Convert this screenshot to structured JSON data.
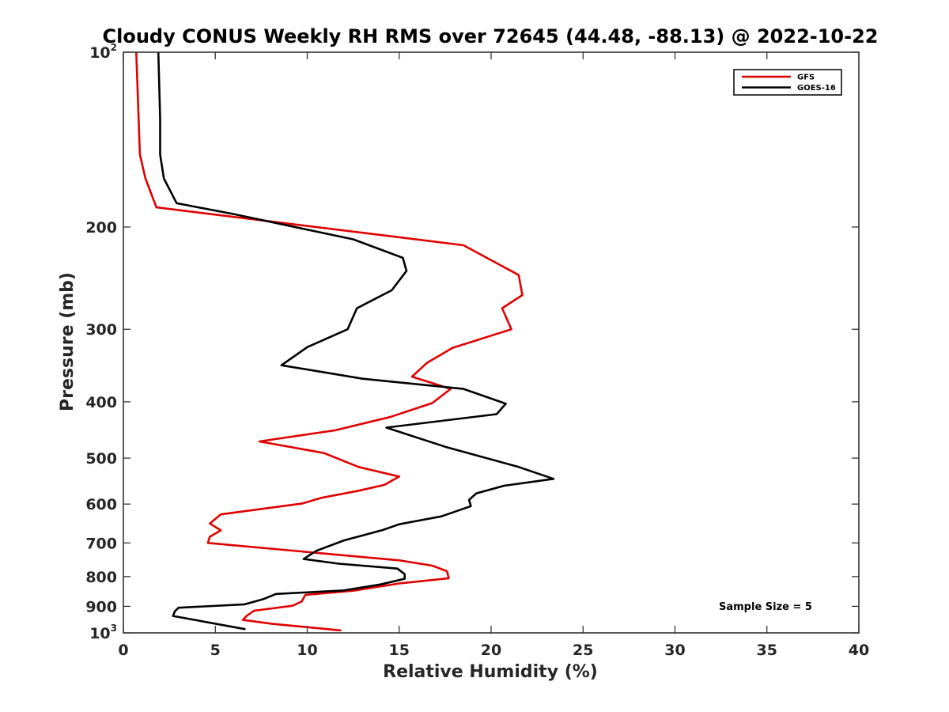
{
  "chart_data": {
    "type": "line",
    "title": "Cloudy CONUS Weekly RH RMS over 72645 (44.48, -88.13) @ 2022-10-22",
    "xlabel": "Relative Humidity (%)",
    "ylabel": "Pressure (mb)",
    "xlim": [
      0,
      40
    ],
    "ylim": [
      100,
      1000
    ],
    "y_scale": "log",
    "y_reversed": true,
    "x_ticks": [
      "0",
      "5",
      "10",
      "15",
      "20",
      "25",
      "30",
      "35",
      "40"
    ],
    "y_ticks": [
      {
        "value": 100,
        "base": "10",
        "exp": "2"
      },
      {
        "value": 200,
        "label": "200"
      },
      {
        "value": 300,
        "label": "300"
      },
      {
        "value": 400,
        "label": "400"
      },
      {
        "value": 500,
        "label": "500"
      },
      {
        "value": 600,
        "label": "600"
      },
      {
        "value": 700,
        "label": "700"
      },
      {
        "value": 800,
        "label": "800"
      },
      {
        "value": 900,
        "label": "900"
      },
      {
        "value": 1000,
        "base": "10",
        "exp": "3"
      }
    ],
    "grid": false,
    "legend_position": "top-right",
    "annotation": "Sample Size = 5",
    "series": [
      {
        "name": "GFS",
        "color": "#e00000",
        "points": [
          [
            0.7,
            100
          ],
          [
            0.9,
            150
          ],
          [
            1.2,
            165
          ],
          [
            1.8,
            185
          ],
          [
            18.5,
            215
          ],
          [
            21.5,
            242
          ],
          [
            21.7,
            262
          ],
          [
            20.6,
            276
          ],
          [
            21.1,
            300
          ],
          [
            17.9,
            323
          ],
          [
            16.5,
            343
          ],
          [
            15.7,
            362
          ],
          [
            17.8,
            380
          ],
          [
            16.8,
            402
          ],
          [
            14.5,
            425
          ],
          [
            11.5,
            448
          ],
          [
            7.4,
            468
          ],
          [
            10.9,
            490
          ],
          [
            12.8,
            518
          ],
          [
            15.0,
            538
          ],
          [
            14.2,
            556
          ],
          [
            12.8,
            569
          ],
          [
            10.8,
            585
          ],
          [
            9.7,
            599
          ],
          [
            5.3,
            625
          ],
          [
            4.7,
            648
          ],
          [
            5.3,
            666
          ],
          [
            4.7,
            683
          ],
          [
            4.6,
            700
          ],
          [
            15.0,
            750
          ],
          [
            16.8,
            766
          ],
          [
            17.6,
            783
          ],
          [
            17.7,
            805
          ],
          [
            15.0,
            822
          ],
          [
            12.5,
            846
          ],
          [
            9.9,
            860
          ],
          [
            9.7,
            883
          ],
          [
            9.2,
            898
          ],
          [
            7.1,
            916
          ],
          [
            6.7,
            935
          ],
          [
            6.5,
            950
          ],
          [
            8.1,
            965
          ],
          [
            11.8,
            990
          ]
        ]
      },
      {
        "name": "GOES-16",
        "color": "#000000",
        "points": [
          [
            1.9,
            100
          ],
          [
            2.0,
            130
          ],
          [
            2.0,
            150
          ],
          [
            2.2,
            165
          ],
          [
            2.9,
            182
          ],
          [
            6.0,
            190
          ],
          [
            12.5,
            210
          ],
          [
            15.2,
            226
          ],
          [
            15.4,
            238
          ],
          [
            14.6,
            257
          ],
          [
            12.7,
            276
          ],
          [
            12.2,
            300
          ],
          [
            10.0,
            322
          ],
          [
            8.6,
            346
          ],
          [
            13.0,
            365
          ],
          [
            18.5,
            380
          ],
          [
            20.8,
            403
          ],
          [
            20.3,
            420
          ],
          [
            14.3,
            443
          ],
          [
            17.5,
            478
          ],
          [
            21.5,
            518
          ],
          [
            23.4,
            543
          ],
          [
            20.7,
            558
          ],
          [
            19.2,
            575
          ],
          [
            18.8,
            590
          ],
          [
            18.9,
            605
          ],
          [
            17.3,
            630
          ],
          [
            15.0,
            650
          ],
          [
            14.1,
            665
          ],
          [
            12.0,
            693
          ],
          [
            10.5,
            722
          ],
          [
            9.8,
            746
          ],
          [
            11.7,
            760
          ],
          [
            14.9,
            775
          ],
          [
            15.3,
            792
          ],
          [
            15.3,
            807
          ],
          [
            14.0,
            825
          ],
          [
            12.0,
            845
          ],
          [
            8.3,
            857
          ],
          [
            7.6,
            875
          ],
          [
            6.6,
            893
          ],
          [
            3.0,
            905
          ],
          [
            2.8,
            918
          ],
          [
            2.7,
            935
          ],
          [
            6.6,
            985
          ]
        ]
      }
    ]
  }
}
